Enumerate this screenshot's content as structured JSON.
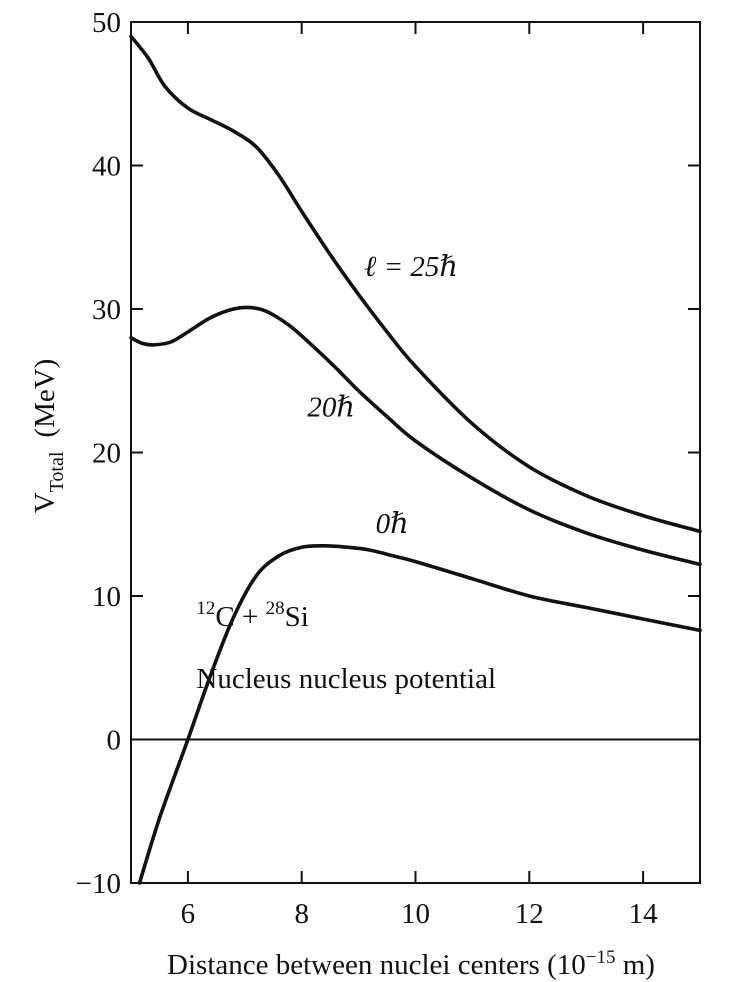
{
  "chart_data": {
    "type": "line",
    "title": "",
    "xlabel": {
      "main": "Distance between nuclei centers (10",
      "sup": "−15",
      "unit": " m)"
    },
    "ylabel": {
      "main": "V",
      "sub": "Total",
      "unit": "(MeV)"
    },
    "xlim": [
      5.0,
      15.0
    ],
    "ylim": [
      -10,
      50
    ],
    "xticks": [
      6,
      8,
      10,
      12,
      14
    ],
    "xtick_labels": [
      "6",
      "8",
      "10",
      "12",
      "14"
    ],
    "yticks": [
      -10,
      0,
      10,
      20,
      30,
      40,
      50
    ],
    "ytick_labels": [
      "−10",
      "0",
      "10",
      "20",
      "30",
      "40",
      "50"
    ],
    "zero_line": true,
    "grid": false,
    "series": [
      {
        "name": "ℓ = 25ℏ",
        "x": [
          5.0,
          5.3,
          5.6,
          6.0,
          6.4,
          6.8,
          7.2,
          7.6,
          8.0,
          8.5,
          9.0,
          9.5,
          10.0,
          11.0,
          12.0,
          13.0,
          14.0,
          15.0
        ],
        "y": [
          49.0,
          47.5,
          45.5,
          44.0,
          43.2,
          42.4,
          41.3,
          39.3,
          36.8,
          33.8,
          31.0,
          28.4,
          26.0,
          22.0,
          19.0,
          17.0,
          15.6,
          14.5
        ]
      },
      {
        "name": "20ℏ",
        "x": [
          5.0,
          5.2,
          5.4,
          5.7,
          6.0,
          6.4,
          6.8,
          7.1,
          7.4,
          7.8,
          8.2,
          8.6,
          9.0,
          9.5,
          10.0,
          11.0,
          12.0,
          13.0,
          14.0,
          15.0
        ],
        "y": [
          28.0,
          27.6,
          27.5,
          27.7,
          28.4,
          29.4,
          30.0,
          30.1,
          29.8,
          28.8,
          27.4,
          25.9,
          24.3,
          22.5,
          20.8,
          18.2,
          16.0,
          14.4,
          13.2,
          12.2
        ]
      },
      {
        "name": "0ℏ",
        "x": [
          5.15,
          5.5,
          6.0,
          6.4,
          6.8,
          7.2,
          7.6,
          8.0,
          8.4,
          8.8,
          9.2,
          9.6,
          10.0,
          11.0,
          12.0,
          13.0,
          14.0,
          15.0
        ],
        "y": [
          -10.0,
          -5.5,
          0.0,
          4.5,
          8.5,
          11.4,
          12.8,
          13.4,
          13.5,
          13.4,
          13.2,
          12.8,
          12.4,
          11.2,
          10.0,
          9.2,
          8.4,
          7.6
        ]
      }
    ],
    "annotations": [
      {
        "text": "ℓ = 25ℏ",
        "x": 9.1,
        "y": 32.3
      },
      {
        "text": "20ℏ",
        "x": 8.1,
        "y": 22.5
      },
      {
        "text": "0ℏ",
        "x": 9.3,
        "y": 14.4
      },
      {
        "text_parts": {
          "sup1": "12",
          "mid": "C + ",
          "sup2": "28",
          "end": "Si"
        },
        "x": 6.15,
        "y": 7.9
      },
      {
        "text": "Nucleus nucleus potential",
        "x": 6.15,
        "y": 3.6
      }
    ]
  }
}
